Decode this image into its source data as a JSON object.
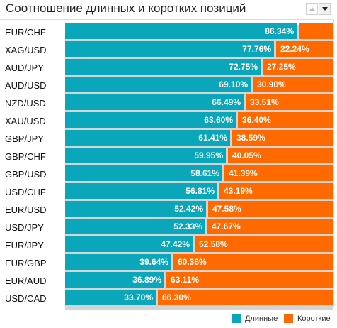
{
  "header": {
    "title": "Соотношение длинных и коротких позиций"
  },
  "controls": {
    "sort_up_icon": "triangle-up-icon",
    "sort_down_icon": "triangle-down-icon"
  },
  "colors": {
    "long": "#0aa6ba",
    "short": "#ff6a00",
    "track": "#d4d4d4"
  },
  "chart_data": {
    "type": "bar",
    "orientation": "horizontal",
    "stacked": "percent",
    "title": "Соотношение длинных и коротких позиций",
    "categories": [
      "EUR/CHF",
      "XAG/USD",
      "AUD/JPY",
      "AUD/USD",
      "NZD/USD",
      "XAU/USD",
      "GBP/JPY",
      "GBP/CHF",
      "GBP/USD",
      "USD/CHF",
      "EUR/USD",
      "USD/JPY",
      "EUR/JPY",
      "EUR/GBP",
      "EUR/AUD",
      "USD/CAD"
    ],
    "series": [
      {
        "name": "Длинные",
        "values": [
          86.34,
          77.76,
          72.75,
          69.1,
          66.49,
          63.6,
          61.41,
          59.95,
          58.61,
          56.81,
          52.42,
          52.33,
          47.42,
          39.64,
          36.89,
          33.7
        ],
        "labels": [
          "86.34%",
          "77.76%",
          "72.75%",
          "69.10%",
          "66.49%",
          "63.60%",
          "61.41%",
          "59.95%",
          "58.61%",
          "56.81%",
          "52.42%",
          "52.33%",
          "47.42%",
          "39.64%",
          "36.89%",
          "33.70%"
        ]
      },
      {
        "name": "Короткие",
        "values": [
          13.66,
          22.24,
          27.25,
          30.9,
          33.51,
          36.4,
          38.59,
          40.05,
          41.39,
          43.19,
          47.58,
          47.67,
          52.58,
          60.36,
          63.11,
          66.3
        ],
        "labels": [
          "",
          "22.24%",
          "27.25%",
          "30.90%",
          "33.51%",
          "36.40%",
          "38.59%",
          "40.05%",
          "41.39%",
          "43.19%",
          "47.58%",
          "47.67%",
          "52.58%",
          "60.36%",
          "63.11%",
          "66.30%"
        ]
      }
    ],
    "xlim": [
      0,
      100
    ],
    "legend": "bottom-right"
  }
}
